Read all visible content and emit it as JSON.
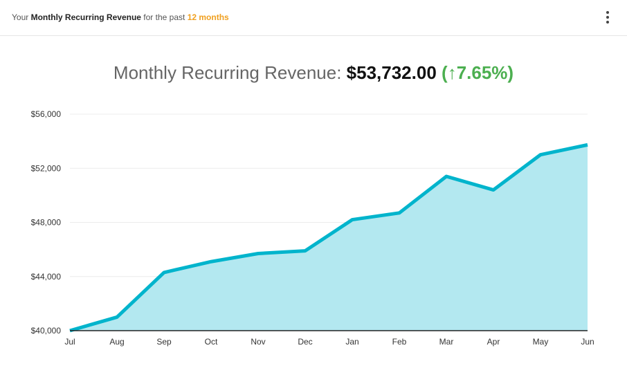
{
  "header": {
    "prefix": "Your",
    "metric": "Monthly Recurring Revenue",
    "middle": "for the past",
    "period": "12 months",
    "accent_color": "#f0a020",
    "menu_icon": "kebab-menu-icon"
  },
  "headline": {
    "label": "Monthly Recurring Revenue:",
    "value": "$53,732.00",
    "change": "(↑7.65%)",
    "change_color": "#4caf50"
  },
  "chart_data": {
    "type": "area",
    "title": "",
    "xlabel": "",
    "ylabel": "",
    "categories": [
      "Jul",
      "Aug",
      "Sep",
      "Oct",
      "Nov",
      "Dec",
      "Jan",
      "Feb",
      "Mar",
      "Apr",
      "May",
      "Jun"
    ],
    "values": [
      40000,
      41000,
      44300,
      45100,
      45700,
      45900,
      48200,
      48700,
      51400,
      50400,
      53000,
      53732
    ],
    "ylim": [
      40000,
      56000
    ],
    "yticks": [
      40000,
      44000,
      48000,
      52000,
      56000
    ],
    "ytick_labels": [
      "$40,000",
      "$44,000",
      "$48,000",
      "$52,000",
      "$56,000"
    ],
    "grid": true,
    "line_color": "#00b4cc",
    "fill_color": "#b3e8f0"
  }
}
